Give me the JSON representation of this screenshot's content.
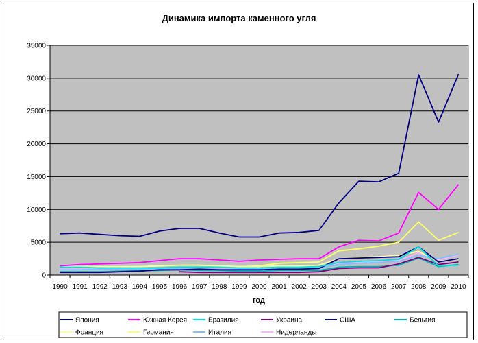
{
  "chart_data": {
    "type": "line",
    "title": "Динамика импорта каменного угля",
    "xlabel": "год",
    "ylabel": "",
    "ylim": [
      0,
      35000
    ],
    "yticks": [
      0,
      5000,
      10000,
      15000,
      20000,
      25000,
      30000,
      35000
    ],
    "categories": [
      "1990",
      "1991",
      "1992",
      "1993",
      "1994",
      "1995",
      "1996",
      "1997",
      "1998",
      "1999",
      "2000",
      "2001",
      "2002",
      "2003",
      "2004",
      "2005",
      "2006",
      "2007",
      "2008",
      "2009",
      "2010"
    ],
    "grid": "horizontal",
    "legend_position": "bottom",
    "plot_background": "#c0c0c0",
    "series": [
      {
        "name": "Япония",
        "color": "#000080",
        "values": [
          6300,
          6400,
          6200,
          6000,
          5900,
          6700,
          7100,
          7100,
          6400,
          5800,
          5800,
          6400,
          6500,
          6800,
          11000,
          14300,
          14200,
          15500,
          30500,
          23300,
          30600
        ]
      },
      {
        "name": "Южная Корея",
        "color": "#ff00ff",
        "values": [
          1400,
          1600,
          1700,
          1800,
          1900,
          2200,
          2500,
          2500,
          2300,
          2100,
          2300,
          2400,
          2500,
          2500,
          4300,
          5300,
          5200,
          6400,
          12600,
          10000,
          13800
        ]
      },
      {
        "name": "Бразилия",
        "color": "#00e0e0",
        "values": [
          1200,
          1200,
          1100,
          1100,
          1100,
          1100,
          1200,
          1200,
          1200,
          1100,
          1100,
          1200,
          1200,
          1300,
          1900,
          2100,
          2200,
          2400,
          4300,
          1400,
          1500
        ]
      },
      {
        "name": "Украина",
        "color": "#800080",
        "values": [
          null,
          null,
          null,
          null,
          null,
          null,
          500,
          400,
          400,
          400,
          400,
          400,
          400,
          500,
          1000,
          1100,
          1100,
          1700,
          2700,
          1600,
          2000
        ]
      },
      {
        "name": "США",
        "color": "#000080",
        "values": [
          400,
          400,
          400,
          500,
          600,
          800,
          800,
          900,
          800,
          800,
          800,
          900,
          900,
          1000,
          2500,
          2600,
          2700,
          2800,
          4300,
          2000,
          2500
        ]
      },
      {
        "name": "Бельгия",
        "color": "#00b0b0",
        "values": [
          500,
          500,
          500,
          600,
          700,
          700,
          800,
          700,
          700,
          600,
          600,
          700,
          700,
          700,
          1200,
          1300,
          1300,
          1500,
          2600,
          1300,
          1600
        ]
      },
      {
        "name": "Франция",
        "color": "#ffff99",
        "values": [
          1300,
          1300,
          1300,
          1300,
          1300,
          1400,
          1500,
          1500,
          1400,
          1300,
          1300,
          1400,
          1400,
          1500,
          2500,
          2700,
          2800,
          3000,
          3600,
          2100,
          2400
        ]
      },
      {
        "name": "Германия",
        "color": "#ffff66",
        "values": [
          1300,
          1300,
          1300,
          1200,
          1300,
          1400,
          1500,
          1500,
          1400,
          1300,
          1400,
          1800,
          1900,
          2000,
          3700,
          4000,
          4400,
          5000,
          8100,
          5300,
          6500
        ]
      },
      {
        "name": "Италия",
        "color": "#80c0ff",
        "values": [
          800,
          800,
          900,
          900,
          900,
          1000,
          1000,
          1000,
          900,
          900,
          900,
          1000,
          1000,
          1100,
          1600,
          1800,
          1900,
          2100,
          3000,
          2500,
          3200
        ]
      },
      {
        "name": "Нидерланды",
        "color": "#ffb0ff",
        "values": [
          900,
          900,
          900,
          1000,
          1000,
          1000,
          1100,
          1100,
          1000,
          1000,
          1000,
          1100,
          1100,
          1200,
          1800,
          1900,
          2000,
          2200,
          3400,
          2300,
          3100
        ]
      }
    ]
  }
}
